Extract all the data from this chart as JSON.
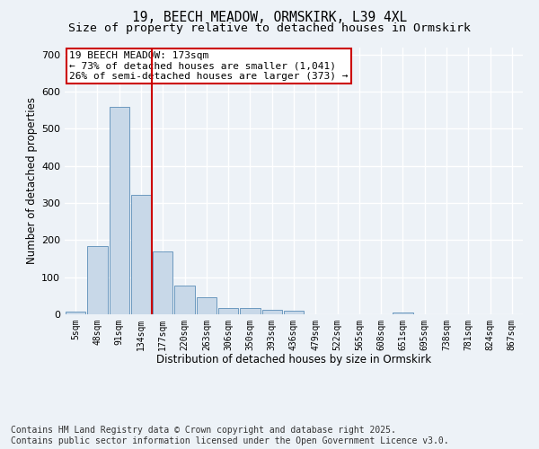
{
  "title_line1": "19, BEECH MEADOW, ORMSKIRK, L39 4XL",
  "title_line2": "Size of property relative to detached houses in Ormskirk",
  "xlabel": "Distribution of detached houses by size in Ormskirk",
  "ylabel": "Number of detached properties",
  "bar_color": "#c8d8e8",
  "bar_edge_color": "#5b8db8",
  "vline_color": "#cc0000",
  "annotation_text": "19 BEECH MEADOW: 173sqm\n← 73% of detached houses are smaller (1,041)\n26% of semi-detached houses are larger (373) →",
  "annotation_box_color": "#ffffff",
  "annotation_box_edge": "#cc0000",
  "categories": [
    "5sqm",
    "48sqm",
    "91sqm",
    "134sqm",
    "177sqm",
    "220sqm",
    "263sqm",
    "306sqm",
    "350sqm",
    "393sqm",
    "436sqm",
    "479sqm",
    "522sqm",
    "565sqm",
    "608sqm",
    "651sqm",
    "695sqm",
    "738sqm",
    "781sqm",
    "824sqm",
    "867sqm"
  ],
  "values": [
    8,
    185,
    558,
    322,
    170,
    78,
    45,
    18,
    18,
    13,
    10,
    0,
    0,
    0,
    0,
    6,
    0,
    0,
    0,
    0,
    0
  ],
  "ylim": [
    0,
    720
  ],
  "yticks": [
    0,
    100,
    200,
    300,
    400,
    500,
    600,
    700
  ],
  "background_color": "#edf2f7",
  "grid_color": "#ffffff",
  "footer_text": "Contains HM Land Registry data © Crown copyright and database right 2025.\nContains public sector information licensed under the Open Government Licence v3.0.",
  "title_fontsize": 10.5,
  "subtitle_fontsize": 9.5,
  "annotation_fontsize": 8,
  "footer_fontsize": 7,
  "vline_pos": 3.5
}
